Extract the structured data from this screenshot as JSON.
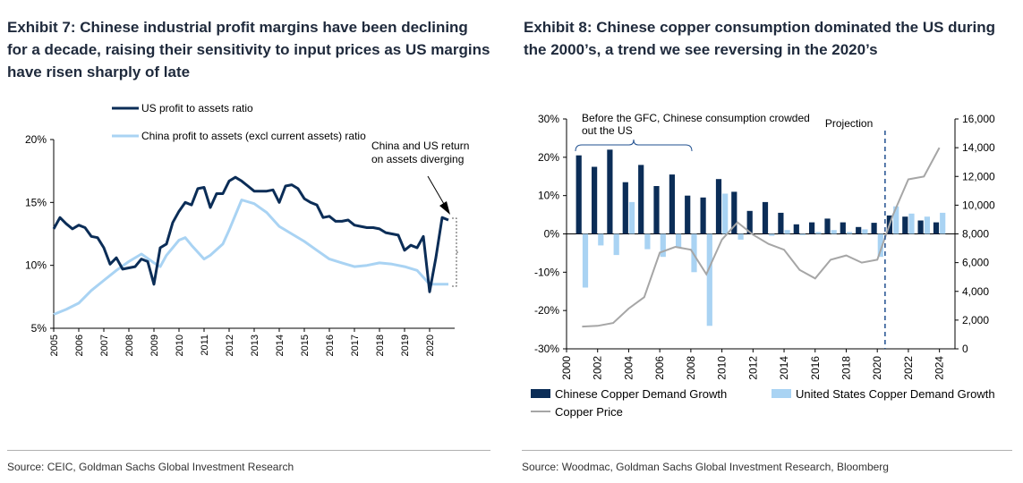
{
  "left": {
    "title": "Exhibit 7: Chinese industrial profit margins have been declining for a decade, raising their sensitivity to input prices as US margins have risen sharply of late",
    "source": "Source: CEIC, Goldman Sachs Global Investment Research"
  },
  "right": {
    "title": "Exhibit 8: Chinese copper consumption dominated the US during the 2000’s, a trend we see reversing in the 2020’s",
    "source": "Source: Woodmac, Goldman Sachs Global Investment Research, Bloomberg"
  },
  "colors": {
    "dark": "#0b2d57",
    "light": "#a9d3f3",
    "gray": "#a6a6a6",
    "dash": "#1f4f8f"
  },
  "chart_data": [
    {
      "type": "line",
      "title": "Exhibit 7",
      "ylim": [
        5,
        20
      ],
      "yticks": [
        "5%",
        "10%",
        "15%",
        "20%"
      ],
      "ytick_values": [
        5,
        10,
        15,
        20
      ],
      "xlim": [
        2005,
        2021
      ],
      "xticks": [
        "2005",
        "2006",
        "2007",
        "2008",
        "2009",
        "2010",
        "2011",
        "2012",
        "2013",
        "2014",
        "2015",
        "2016",
        "2017",
        "2018",
        "2019",
        "2020"
      ],
      "annotation": [
        "China and US return",
        "on assets diverging"
      ],
      "series": [
        {
          "name": "US profit to assets ratio",
          "color": "#0b2d57",
          "points": [
            [
              2005.0,
              12.9
            ],
            [
              2005.25,
              13.8
            ],
            [
              2005.5,
              13.3
            ],
            [
              2005.75,
              12.9
            ],
            [
              2006.0,
              13.2
            ],
            [
              2006.25,
              13.0
            ],
            [
              2006.5,
              12.3
            ],
            [
              2006.75,
              12.2
            ],
            [
              2007.0,
              11.4
            ],
            [
              2007.25,
              10.1
            ],
            [
              2007.5,
              10.6
            ],
            [
              2007.75,
              9.7
            ],
            [
              2008.0,
              9.8
            ],
            [
              2008.25,
              9.9
            ],
            [
              2008.5,
              10.5
            ],
            [
              2008.75,
              10.3
            ],
            [
              2009.0,
              8.5
            ],
            [
              2009.25,
              11.4
            ],
            [
              2009.5,
              11.7
            ],
            [
              2009.75,
              13.4
            ],
            [
              2010.0,
              14.3
            ],
            [
              2010.25,
              15.0
            ],
            [
              2010.5,
              14.8
            ],
            [
              2010.75,
              16.1
            ],
            [
              2011.0,
              16.2
            ],
            [
              2011.25,
              14.6
            ],
            [
              2011.5,
              15.7
            ],
            [
              2011.75,
              15.7
            ],
            [
              2012.0,
              16.7
            ],
            [
              2012.25,
              17.0
            ],
            [
              2012.5,
              16.7
            ],
            [
              2012.75,
              16.3
            ],
            [
              2013.0,
              15.9
            ],
            [
              2013.25,
              15.9
            ],
            [
              2013.5,
              15.9
            ],
            [
              2013.75,
              16.0
            ],
            [
              2014.0,
              15.0
            ],
            [
              2014.25,
              16.3
            ],
            [
              2014.5,
              16.4
            ],
            [
              2014.75,
              16.1
            ],
            [
              2015.0,
              15.3
            ],
            [
              2015.25,
              15.0
            ],
            [
              2015.5,
              14.8
            ],
            [
              2015.75,
              13.8
            ],
            [
              2016.0,
              13.9
            ],
            [
              2016.25,
              13.5
            ],
            [
              2016.5,
              13.5
            ],
            [
              2016.75,
              13.6
            ],
            [
              2017.0,
              13.2
            ],
            [
              2017.25,
              13.1
            ],
            [
              2017.5,
              13.0
            ],
            [
              2017.75,
              13.0
            ],
            [
              2018.0,
              12.9
            ],
            [
              2018.25,
              12.6
            ],
            [
              2018.5,
              12.5
            ],
            [
              2018.75,
              12.4
            ],
            [
              2019.0,
              11.2
            ],
            [
              2019.25,
              11.6
            ],
            [
              2019.5,
              11.4
            ],
            [
              2019.75,
              12.3
            ],
            [
              2020.0,
              7.9
            ],
            [
              2020.25,
              10.6
            ],
            [
              2020.5,
              13.8
            ],
            [
              2020.75,
              13.6
            ]
          ]
        },
        {
          "name": "China profit to assets (excl current assets) ratio",
          "color": "#a9d3f3",
          "points": [
            [
              2005.0,
              6.1
            ],
            [
              2005.5,
              6.5
            ],
            [
              2006.0,
              7.0
            ],
            [
              2006.5,
              8.0
            ],
            [
              2007.0,
              8.8
            ],
            [
              2007.5,
              9.6
            ],
            [
              2008.0,
              10.3
            ],
            [
              2008.5,
              10.9
            ],
            [
              2009.0,
              10.2
            ],
            [
              2009.25,
              9.9
            ],
            [
              2009.5,
              10.8
            ],
            [
              2010.0,
              12.0
            ],
            [
              2010.25,
              12.2
            ],
            [
              2010.5,
              11.6
            ],
            [
              2011.0,
              10.5
            ],
            [
              2011.25,
              10.8
            ],
            [
              2011.75,
              11.7
            ],
            [
              2012.0,
              12.8
            ],
            [
              2012.5,
              15.2
            ],
            [
              2013.0,
              14.9
            ],
            [
              2013.5,
              14.2
            ],
            [
              2014.0,
              13.1
            ],
            [
              2014.5,
              12.5
            ],
            [
              2015.0,
              11.9
            ],
            [
              2015.5,
              11.2
            ],
            [
              2016.0,
              10.5
            ],
            [
              2016.5,
              10.2
            ],
            [
              2017.0,
              9.9
            ],
            [
              2017.5,
              10.0
            ],
            [
              2018.0,
              10.2
            ],
            [
              2018.5,
              10.1
            ],
            [
              2019.0,
              9.9
            ],
            [
              2019.5,
              9.6
            ],
            [
              2020.0,
              8.5
            ],
            [
              2020.5,
              8.5
            ],
            [
              2020.75,
              8.5
            ]
          ]
        }
      ]
    },
    {
      "type": "bar",
      "title": "Exhibit 8",
      "categories": [
        "2001",
        "2002",
        "2003",
        "2004",
        "2005",
        "2006",
        "2007",
        "2008",
        "2009",
        "2010",
        "2011",
        "2012",
        "2013",
        "2014",
        "2015",
        "2016",
        "2017",
        "2018",
        "2019",
        "2020",
        "2021",
        "2022",
        "2023",
        "2024"
      ],
      "xtick_labels": [
        "2000",
        "2002",
        "2004",
        "2006",
        "2008",
        "2010",
        "2012",
        "2014",
        "2016",
        "2018",
        "2020",
        "2022",
        "2024"
      ],
      "ylim": [
        -30,
        30
      ],
      "yticks": [
        "-30%",
        "-20%",
        "-10%",
        "0%",
        "10%",
        "20%",
        "30%"
      ],
      "ytick_values": [
        -30,
        -20,
        -10,
        0,
        10,
        20,
        30
      ],
      "y2lim": [
        0,
        16000
      ],
      "y2ticks": [
        "0",
        "2,000",
        "4,000",
        "6,000",
        "8,000",
        "10,000",
        "12,000",
        "14,000",
        "16,000"
      ],
      "y2tick_values": [
        0,
        2000,
        4000,
        6000,
        8000,
        10000,
        12000,
        14000,
        16000
      ],
      "projection_label": "Projection",
      "projection_start": "2021",
      "bracket_note": [
        "Before the GFC, Chinese consumption crowded",
        "out the US"
      ],
      "series": [
        {
          "name": "Chinese Copper Demand Growth",
          "color": "#0b2d57",
          "values": [
            20.5,
            17.5,
            22.0,
            13.5,
            18.0,
            12.5,
            15.5,
            10.0,
            9.5,
            14.3,
            11.0,
            6.0,
            8.3,
            5.5,
            2.5,
            3.0,
            4.0,
            3.0,
            1.8,
            2.9,
            4.8,
            4.5,
            3.5,
            3.0
          ]
        },
        {
          "name": "United States Copper Demand Growth",
          "color": "#a9d3f3",
          "values": [
            -14.0,
            -3.0,
            -5.5,
            8.3,
            -4.0,
            -6.0,
            -3.5,
            -10.0,
            -24.0,
            10.5,
            -1.5,
            0.0,
            -0.5,
            1.0,
            -0.3,
            0.5,
            1.0,
            0.5,
            1.2,
            -6.0,
            7.2,
            5.3,
            4.5,
            5.5
          ]
        },
        {
          "name": "Copper Price",
          "color": "#a6a6a6",
          "axis": "secondary",
          "values": [
            1550,
            1600,
            1800,
            2800,
            3600,
            6700,
            7100,
            6900,
            5200,
            7600,
            8800,
            7950,
            7300,
            6900,
            5500,
            4900,
            6200,
            6500,
            6000,
            6200,
            9300,
            11800,
            12000,
            14000
          ]
        }
      ]
    }
  ]
}
